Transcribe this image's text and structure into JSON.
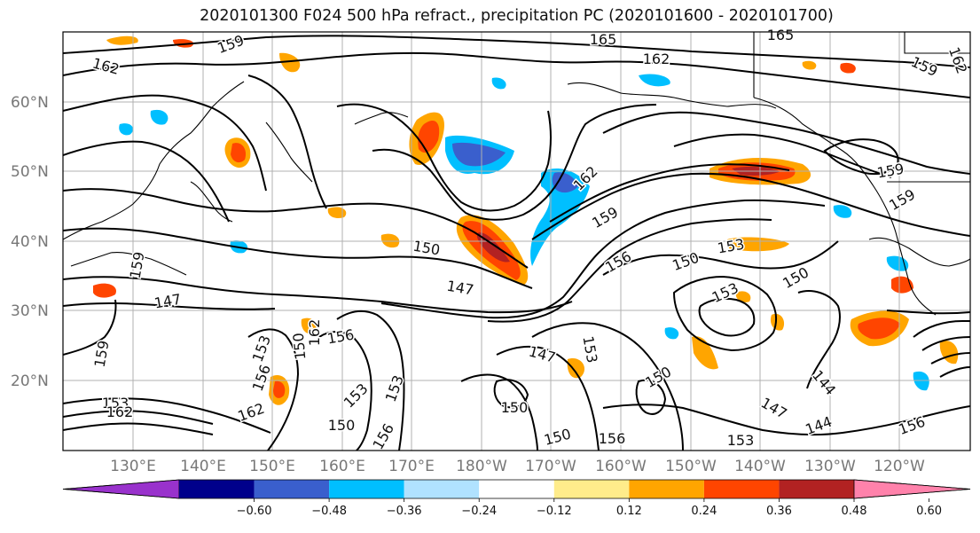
{
  "title": "2020101300 F024 500 hPa refract., precipitation PC (2020101600 - 2020101700)",
  "lat_labels": [
    "60°N",
    "50°N",
    "40°N",
    "30°N",
    "20°N"
  ],
  "lon_labels": [
    "130°E",
    "140°E",
    "150°E",
    "160°E",
    "170°E",
    "180°W",
    "170°W",
    "160°W",
    "150°W",
    "140°W",
    "130°W",
    "120°W"
  ],
  "colorbar": {
    "ticks": [
      "−0.60",
      "−0.48",
      "−0.36",
      "−0.24",
      "−0.12",
      "0.12",
      "0.24",
      "0.36",
      "0.48",
      "0.60"
    ],
    "colors": [
      "#9932cc",
      "#00008b",
      "#3a5fcd",
      "#00bfff",
      "#b0e2ff",
      "#ffffff",
      "#ffec8b",
      "#ffa500",
      "#ff4500",
      "#b22222",
      "#ff82ab"
    ]
  },
  "contour_labels": [
    "159",
    "165",
    "162",
    "165",
    "162",
    "159",
    "162",
    "159",
    "159",
    "150",
    "162",
    "159",
    "153",
    "147",
    "156",
    "150",
    "159",
    "153",
    "150",
    "147",
    "153",
    "150",
    "162",
    "156",
    "153",
    "156",
    "153",
    "147",
    "153",
    "150",
    "144",
    "147",
    "144",
    "150",
    "153",
    "159",
    "153",
    "150",
    "156",
    "150",
    "162",
    "156",
    "156",
    "162"
  ]
}
